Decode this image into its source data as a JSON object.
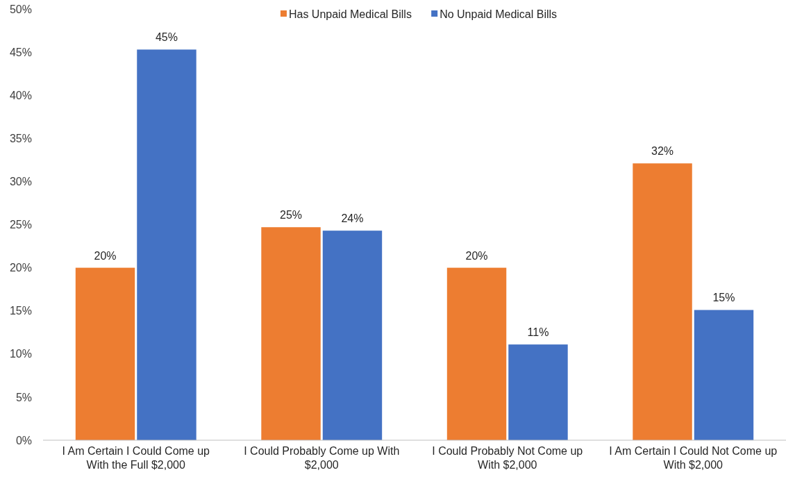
{
  "chart_data": {
    "type": "bar",
    "categories": [
      "I Am Certain I Could Come up With the Full $2,000",
      "I Could Probably Come up With $2,000",
      "I Could Probably Not Come up With $2,000",
      "I Am Certain I Could Not Come up With $2,000"
    ],
    "series": [
      {
        "name": "Has Unpaid Medical Bills",
        "color": "#ed7d31",
        "values": [
          20.0,
          24.7,
          20.0,
          32.1
        ],
        "value_labels": [
          "20%",
          "25%",
          "20%",
          "32%"
        ]
      },
      {
        "name": "No Unpaid Medical Bills",
        "color": "#4472c4",
        "values": [
          45.3,
          24.3,
          11.1,
          15.1
        ],
        "value_labels": [
          "45%",
          "24%",
          "11%",
          "15%"
        ]
      }
    ],
    "ylim": [
      0,
      50
    ],
    "yticks": [
      {
        "value": 0,
        "label": "0%"
      },
      {
        "value": 5,
        "label": "5%"
      },
      {
        "value": 10,
        "label": "10%"
      },
      {
        "value": 15,
        "label": "15%"
      },
      {
        "value": 20,
        "label": "20%"
      },
      {
        "value": 25,
        "label": "25%"
      },
      {
        "value": 30,
        "label": "30%"
      },
      {
        "value": 35,
        "label": "35%"
      },
      {
        "value": 40,
        "label": "40%"
      },
      {
        "value": 45,
        "label": "45%"
      },
      {
        "value": 50,
        "label": "50%"
      }
    ],
    "legend": "top"
  }
}
